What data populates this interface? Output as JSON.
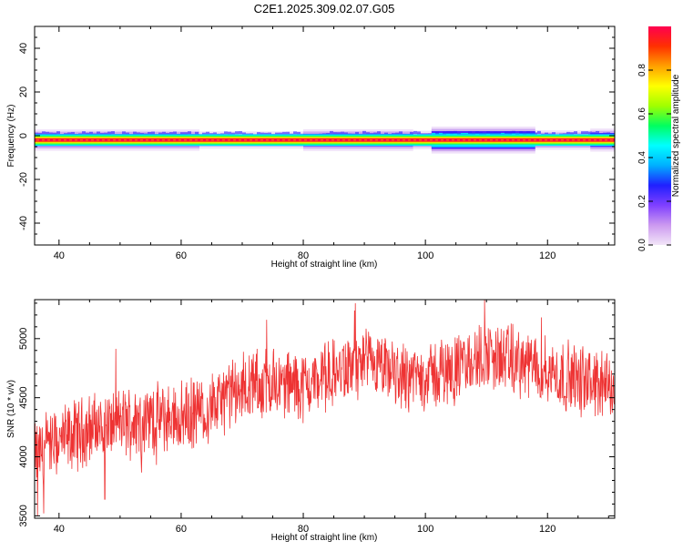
{
  "title": "C2E1.2025.309.02.07.G05",
  "chart_data": [
    {
      "type": "heatmap",
      "xlabel": "Height of straight line (km)",
      "ylabel": "Frequency (Hz)",
      "xlim": [
        36,
        131
      ],
      "ylim": [
        -50,
        50
      ],
      "xticks": [
        40,
        60,
        80,
        100,
        120
      ],
      "yticks": [
        -40,
        -20,
        0,
        20,
        40
      ],
      "colorbar": {
        "label": "Normalized spectral amplitude",
        "ticks": [
          "0.0",
          "0.2",
          "0.4",
          "0.6",
          "0.8"
        ],
        "tick_values": [
          0.0,
          0.2,
          0.4,
          0.6,
          0.8
        ],
        "range": [
          0,
          1
        ],
        "colormap": [
          "#f2e6f8",
          "#cc99f0",
          "#7f3fff",
          "#2020ff",
          "#00b0ff",
          "#00ffff",
          "#00ff60",
          "#a0ff00",
          "#ffff00",
          "#ffa000",
          "#ff3000",
          "#ff0050"
        ]
      },
      "band": {
        "center_hz": -2,
        "core_halfwidth_hz": 0.6,
        "spread_by_height": [
          {
            "from": 36,
            "to": 63,
            "halfwidth_hz": 3.2
          },
          {
            "from": 63,
            "to": 80,
            "halfwidth_hz": 2.3
          },
          {
            "from": 80,
            "to": 98,
            "halfwidth_hz": 3.3
          },
          {
            "from": 98,
            "to": 101,
            "halfwidth_hz": 2.6
          },
          {
            "from": 101,
            "to": 118,
            "halfwidth_hz": 4.5
          },
          {
            "from": 118,
            "to": 127,
            "halfwidth_hz": 2.8
          },
          {
            "from": 127,
            "to": 131,
            "halfwidth_hz": 3.6
          }
        ]
      }
    },
    {
      "type": "line",
      "xlabel": "Height of straight line (km)",
      "ylabel": "SNR (10 * v/v)",
      "xlim": [
        36,
        131
      ],
      "ylim": [
        3480,
        5330
      ],
      "xticks": [
        40,
        60,
        80,
        100,
        120
      ],
      "yticks": [
        3500,
        4000,
        4500,
        5000
      ],
      "series": [
        {
          "color": "#ee3333",
          "trend_x": [
            36,
            40,
            45,
            50,
            55,
            60,
            65,
            70,
            75,
            80,
            85,
            90,
            95,
            100,
            105,
            110,
            115,
            120,
            125,
            131
          ],
          "trend_y": [
            4000,
            4120,
            4240,
            4290,
            4320,
            4330,
            4420,
            4580,
            4630,
            4600,
            4700,
            4780,
            4690,
            4680,
            4740,
            4860,
            4800,
            4720,
            4650,
            4580
          ],
          "peaks_x": [
            36.5,
            37.5,
            47.5,
            74,
            88.5,
            109.7,
            119,
            128
          ],
          "peaks_y": [
            3500,
            3520,
            3640,
            5160,
            5300,
            5330,
            5180,
            4880
          ]
        }
      ]
    }
  ]
}
